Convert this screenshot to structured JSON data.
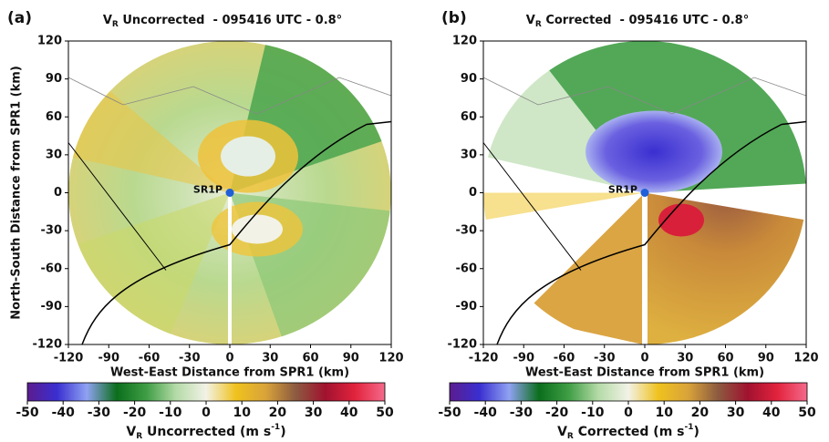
{
  "chart_data": [
    {
      "type": "heatmap",
      "panel_label": "(a)",
      "title_symbol": "V",
      "title_subscript": "R",
      "title": " Uncorrected  - 095416 UTC - 0.8°",
      "xlabel": "West-East Distance from SPR1 (km)",
      "ylabel": "North-South Distance from SPR1 (km)",
      "xlim": [
        -120,
        120
      ],
      "ylim": [
        -120,
        120
      ],
      "xticks": [
        -120,
        -90,
        -60,
        -30,
        0,
        30,
        60,
        90,
        120
      ],
      "yticks": [
        -120,
        -90,
        -60,
        -30,
        0,
        30,
        60,
        90,
        120
      ],
      "station": {
        "label": "SR1P",
        "x": 0,
        "y": 0,
        "color": "#1f5fd8"
      },
      "colorbar": {
        "label": [
          "V",
          "R",
          " Uncorrected (m s",
          "-1",
          ")"
        ],
        "lim": [
          -50,
          50
        ],
        "ticks": [
          -50,
          -40,
          -30,
          -20,
          -10,
          0,
          10,
          20,
          30,
          40,
          50
        ],
        "colors": [
          "#5b1c8e",
          "#3a2fd0",
          "#8fa2f2",
          "#0b6e1c",
          "#3f9e45",
          "#b5dba8",
          "#f2f2e6",
          "#f0c21e",
          "#d9a33a",
          "#8c5b40",
          "#a0122f",
          "#e2233d",
          "#f46a8a"
        ]
      }
    },
    {
      "type": "heatmap",
      "panel_label": "(b)",
      "title_symbol": "V",
      "title_subscript": "R",
      "title": " Corrected  - 095416 UTC - 0.8°",
      "xlabel": "West-East Distance from SPR1 (km)",
      "xlim": [
        -120,
        120
      ],
      "ylim": [
        -120,
        120
      ],
      "xticks": [
        -120,
        -90,
        -60,
        -30,
        0,
        30,
        60,
        90,
        120
      ],
      "yticks": [
        -120,
        -90,
        -60,
        -30,
        0,
        30,
        60,
        90,
        120
      ],
      "station": {
        "label": "SR1P",
        "x": 0,
        "y": 0,
        "color": "#1f5fd8"
      },
      "colorbar": {
        "label": [
          "V",
          "R",
          " Corrected (m s",
          "-1",
          ")"
        ],
        "lim": [
          -50,
          50
        ],
        "ticks": [
          -50,
          -40,
          -30,
          -20,
          -10,
          0,
          10,
          20,
          30,
          40,
          50
        ],
        "colors": [
          "#5b1c8e",
          "#3a2fd0",
          "#8fa2f2",
          "#0b6e1c",
          "#3f9e45",
          "#b5dba8",
          "#f2f2e6",
          "#f0c21e",
          "#d9a33a",
          "#8c5b40",
          "#a0122f",
          "#e2233d",
          "#f46a8a"
        ]
      }
    }
  ]
}
